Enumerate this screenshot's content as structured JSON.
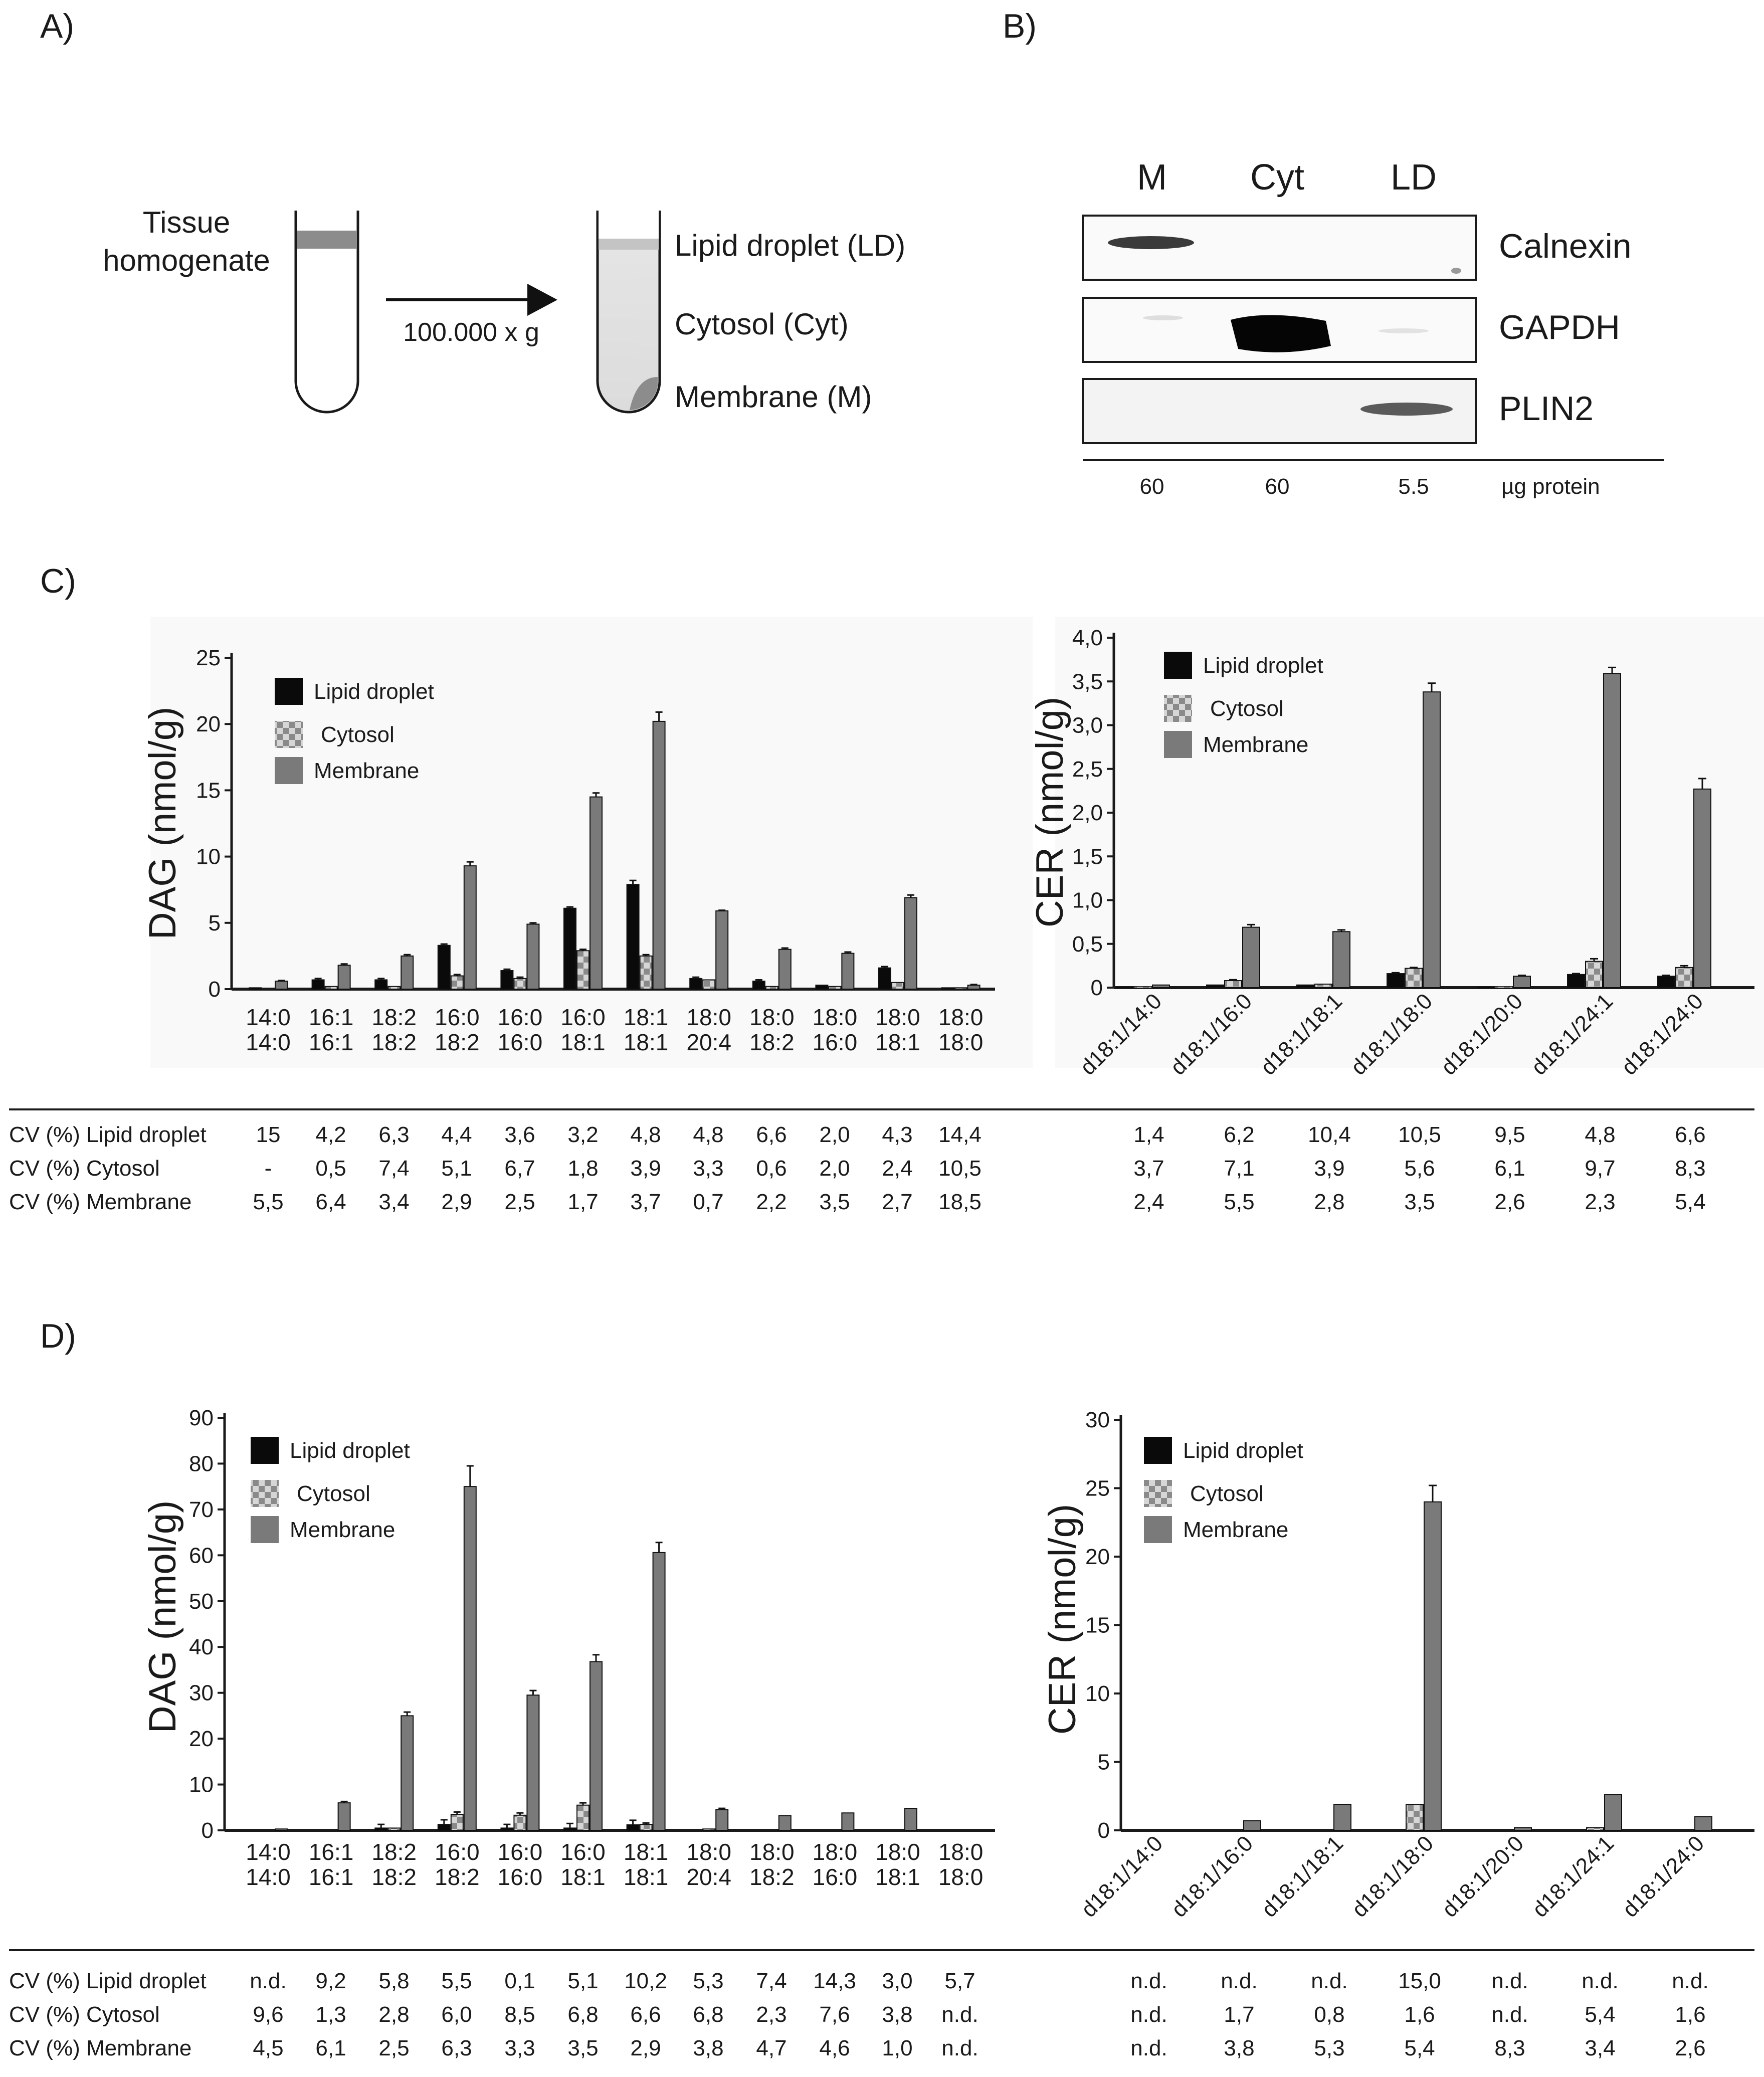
{
  "panel_labels": {
    "a": "A)",
    "b": "B)",
    "c": "C)",
    "d": "D)"
  },
  "panelA": {
    "tissue": [
      "Tissue",
      "homogenate"
    ],
    "speed": "100.000 x g",
    "fractions": [
      "Lipid droplet (LD)",
      "Cytosol (Cyt)",
      "Membrane (M)"
    ]
  },
  "panelB": {
    "lanes": [
      "M",
      "Cyt",
      "LD"
    ],
    "blots": [
      "Calnexin",
      "GAPDH",
      "PLIN2"
    ],
    "amounts": [
      "60",
      "60",
      "5.5"
    ],
    "amount_label": "µg protein"
  },
  "colors": {
    "lipid_droplet": "#0a0a0a",
    "cytosol": "#bdbdbd",
    "membrane": "#7a7a7a",
    "axis": "#1a1a1a"
  },
  "chart_data": [
    {
      "id": "C_DAG",
      "type": "bar",
      "panel": "C",
      "ylabel": "DAG (nmol/g)",
      "ylim": [
        0,
        25
      ],
      "yticks": [
        "0",
        "5",
        "10",
        "15",
        "20",
        "25"
      ],
      "categories": [
        [
          "14:0",
          "14:0"
        ],
        [
          "16:1",
          "16:1"
        ],
        [
          "18:2",
          "18:2"
        ],
        [
          "16:0",
          "18:2"
        ],
        [
          "16:0",
          "16:0"
        ],
        [
          "16:0",
          "18:1"
        ],
        [
          "18:1",
          "18:1"
        ],
        [
          "18:0",
          "20:4"
        ],
        [
          "18:0",
          "18:2"
        ],
        [
          "18:0",
          "16:0"
        ],
        [
          "18:0",
          "18:1"
        ],
        [
          "18:0",
          "18:0"
        ]
      ],
      "legend": [
        "Lipid droplet",
        "Cytosol",
        "Membrane"
      ],
      "series": [
        {
          "name": "Lipid droplet",
          "values": [
            0.1,
            0.7,
            0.7,
            3.3,
            1.4,
            6.1,
            7.9,
            0.8,
            0.6,
            0.3,
            1.6,
            0.1
          ],
          "errors": [
            0,
            0.1,
            0.1,
            0.1,
            0.1,
            0.1,
            0.3,
            0.1,
            0.1,
            0,
            0.1,
            0
          ]
        },
        {
          "name": "Cytosol",
          "values": [
            0,
            0.2,
            0.2,
            1.0,
            0.8,
            2.9,
            2.5,
            0.7,
            0.2,
            0.2,
            0.5,
            0.1
          ],
          "errors": [
            0,
            0,
            0,
            0.1,
            0.1,
            0.1,
            0.1,
            0,
            0,
            0,
            0,
            0
          ]
        },
        {
          "name": "Membrane",
          "values": [
            0.6,
            1.8,
            2.5,
            9.3,
            4.9,
            14.5,
            20.2,
            5.9,
            3.0,
            2.7,
            6.9,
            0.3
          ],
          "errors": [
            0.05,
            0.1,
            0.1,
            0.3,
            0.1,
            0.3,
            0.7,
            0.05,
            0.1,
            0.1,
            0.2,
            0.05
          ]
        }
      ]
    },
    {
      "id": "C_CER",
      "type": "bar",
      "panel": "C",
      "ylabel": "CER (nmol/g)",
      "ylim": [
        0,
        4.0
      ],
      "yticks": [
        "0",
        "0,5",
        "1,0",
        "1,5",
        "2,0",
        "2,5",
        "3,0",
        "3,5",
        "4,0"
      ],
      "categories": [
        "d18:1/14:0",
        "d18:1/16:0",
        "d18:1/18:1",
        "d18:1/18:0",
        "d18:1/20:0",
        "d18:1/24:1",
        "d18:1/24:0"
      ],
      "legend": [
        "Lipid droplet",
        "Cytosol",
        "Membrane"
      ],
      "series": [
        {
          "name": "Lipid droplet",
          "values": [
            0.01,
            0.03,
            0.03,
            0.16,
            0.01,
            0.15,
            0.13
          ],
          "errors": [
            0,
            0,
            0,
            0.01,
            0,
            0.01,
            0.01
          ]
        },
        {
          "name": "Cytosol",
          "values": [
            0.01,
            0.08,
            0.04,
            0.22,
            0.01,
            0.3,
            0.23
          ],
          "errors": [
            0,
            0.01,
            0,
            0.01,
            0,
            0.03,
            0.02
          ]
        },
        {
          "name": "Membrane",
          "values": [
            0.03,
            0.69,
            0.64,
            3.38,
            0.13,
            3.59,
            2.27
          ],
          "errors": [
            0,
            0.03,
            0.02,
            0.1,
            0.01,
            0.07,
            0.12
          ]
        }
      ]
    },
    {
      "id": "D_DAG",
      "type": "bar",
      "panel": "D",
      "ylabel": "DAG (nmol/g)",
      "ylim": [
        0,
        90
      ],
      "yticks": [
        "0",
        "10",
        "20",
        "30",
        "40",
        "50",
        "60",
        "70",
        "80",
        "90"
      ],
      "categories": [
        [
          "14:0",
          "14:0"
        ],
        [
          "16:1",
          "16:1"
        ],
        [
          "18:2",
          "18:2"
        ],
        [
          "16:0",
          "18:2"
        ],
        [
          "16:0",
          "16:0"
        ],
        [
          "16:0",
          "18:1"
        ],
        [
          "18:1",
          "18:1"
        ],
        [
          "18:0",
          "20:4"
        ],
        [
          "18:0",
          "18:2"
        ],
        [
          "18:0",
          "16:0"
        ],
        [
          "18:0",
          "18:1"
        ],
        [
          "18:0",
          "18:0"
        ]
      ],
      "legend": [
        "Lipid droplet",
        "Cytosol",
        "Membrane"
      ],
      "series": [
        {
          "name": "Lipid droplet",
          "values": [
            0,
            0,
            0.5,
            1.3,
            0.5,
            0.5,
            1.2,
            0,
            0,
            0,
            0,
            0
          ],
          "errors": [
            0,
            0,
            0.8,
            1.0,
            0.8,
            1.0,
            1.0,
            0,
            0,
            0,
            0,
            0
          ]
        },
        {
          "name": "Cytosol",
          "values": [
            0,
            0,
            0.5,
            3.5,
            3.3,
            5.5,
            1.3,
            0.3,
            0,
            0,
            0,
            0
          ],
          "errors": [
            0,
            0,
            0,
            0.5,
            0.5,
            0.5,
            0.3,
            0,
            0,
            0,
            0,
            0
          ]
        },
        {
          "name": "Membrane",
          "values": [
            0.3,
            6.0,
            25.0,
            75.0,
            29.5,
            36.8,
            60.6,
            4.5,
            3.2,
            3.8,
            4.8,
            0
          ],
          "errors": [
            0,
            0.3,
            0.8,
            4.5,
            1.0,
            1.5,
            2.2,
            0.3,
            0,
            0,
            0,
            0
          ]
        }
      ]
    },
    {
      "id": "D_CER",
      "type": "bar",
      "panel": "D",
      "ylabel": "CER (nmol/g)",
      "ylim": [
        0,
        30
      ],
      "yticks": [
        "0",
        "5",
        "10",
        "15",
        "20",
        "25",
        "30"
      ],
      "categories": [
        "d18:1/14:0",
        "d18:1/16:0",
        "d18:1/18:1",
        "d18:1/18:0",
        "d18:1/20:0",
        "d18:1/24:1",
        "d18:1/24:0"
      ],
      "legend": [
        "Lipid droplet",
        "Cytosol",
        "Membrane"
      ],
      "series": [
        {
          "name": "Lipid droplet",
          "values": [
            0,
            0,
            0,
            0,
            0,
            0,
            0
          ],
          "errors": [
            0,
            0,
            0,
            0,
            0,
            0,
            0
          ]
        },
        {
          "name": "Cytosol",
          "values": [
            0,
            0,
            0,
            1.9,
            0,
            0.2,
            0
          ],
          "errors": [
            0,
            0,
            0,
            0,
            0,
            0,
            0
          ]
        },
        {
          "name": "Membrane",
          "values": [
            0,
            0.7,
            1.9,
            24.0,
            0.2,
            2.6,
            1.0
          ],
          "errors": [
            0,
            0,
            0,
            1.2,
            0,
            0,
            0
          ]
        }
      ]
    }
  ],
  "cv_tables": {
    "row_labels": [
      "CV (%) Lipid droplet",
      "CV (%) Cytosol",
      "CV (%) Membrane"
    ],
    "C_DAG": [
      [
        "15",
        "4,2",
        "6,3",
        "4,4",
        "3,6",
        "3,2",
        "4,8",
        "4,8",
        "6,6",
        "2,0",
        "4,3",
        "14,4"
      ],
      [
        "-",
        "0,5",
        "7,4",
        "5,1",
        "6,7",
        "1,8",
        "3,9",
        "3,3",
        "0,6",
        "2,0",
        "2,4",
        "10,5"
      ],
      [
        "5,5",
        "6,4",
        "3,4",
        "2,9",
        "2,5",
        "1,7",
        "3,7",
        "0,7",
        "2,2",
        "3,5",
        "2,7",
        "18,5"
      ]
    ],
    "C_CER": [
      [
        "1,4",
        "6,2",
        "10,4",
        "10,5",
        "9,5",
        "4,8",
        "6,6"
      ],
      [
        "3,7",
        "7,1",
        "3,9",
        "5,6",
        "6,1",
        "9,7",
        "8,3"
      ],
      [
        "2,4",
        "5,5",
        "2,8",
        "3,5",
        "2,6",
        "2,3",
        "5,4"
      ]
    ],
    "D_DAG": [
      [
        "n.d.",
        "9,2",
        "5,8",
        "5,5",
        "0,1",
        "5,1",
        "10,2",
        "5,3",
        "7,4",
        "14,3",
        "3,0",
        "5,7"
      ],
      [
        "9,6",
        "1,3",
        "2,8",
        "6,0",
        "8,5",
        "6,8",
        "6,6",
        "6,8",
        "2,3",
        "7,6",
        "3,8",
        "n.d."
      ],
      [
        "4,5",
        "6,1",
        "2,5",
        "6,3",
        "3,3",
        "3,5",
        "2,9",
        "3,8",
        "4,7",
        "4,6",
        "1,0",
        "n.d."
      ]
    ],
    "D_CER": [
      [
        "n.d.",
        "n.d.",
        "n.d.",
        "15,0",
        "n.d.",
        "n.d.",
        "n.d."
      ],
      [
        "n.d.",
        "1,7",
        "0,8",
        "1,6",
        "n.d.",
        "5,4",
        "1,6"
      ],
      [
        "n.d.",
        "3,8",
        "5,3",
        "5,4",
        "8,3",
        "3,4",
        "2,6"
      ]
    ]
  }
}
